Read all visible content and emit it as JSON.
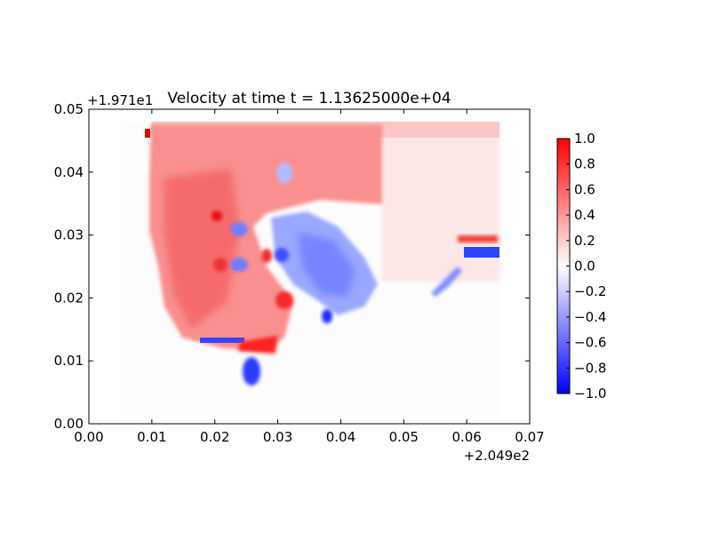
{
  "chart_data": {
    "type": "heatmap",
    "title": "Velocity at time t = 1.13625000e+04",
    "xlabel": "",
    "ylabel": "",
    "xlim": [
      0.0,
      0.07
    ],
    "ylim": [
      0.0,
      0.05
    ],
    "x_ticks": [
      "0.00",
      "0.01",
      "0.02",
      "0.03",
      "0.04",
      "0.05",
      "0.06",
      "0.07"
    ],
    "y_ticks": [
      "0.00",
      "0.01",
      "0.02",
      "0.03",
      "0.04",
      "0.05"
    ],
    "x_offset_label": "+2.049e2",
    "y_offset_label": "+1.971e1",
    "colorbar": {
      "colormap": "bwr",
      "vmin": -1.0,
      "vmax": 1.0,
      "ticks": [
        "−1.0",
        "−0.8",
        "−0.6",
        "−0.4",
        "−0.2",
        "0.0",
        "0.2",
        "0.4",
        "0.6",
        "0.8",
        "1.0"
      ]
    },
    "grid": false
  }
}
